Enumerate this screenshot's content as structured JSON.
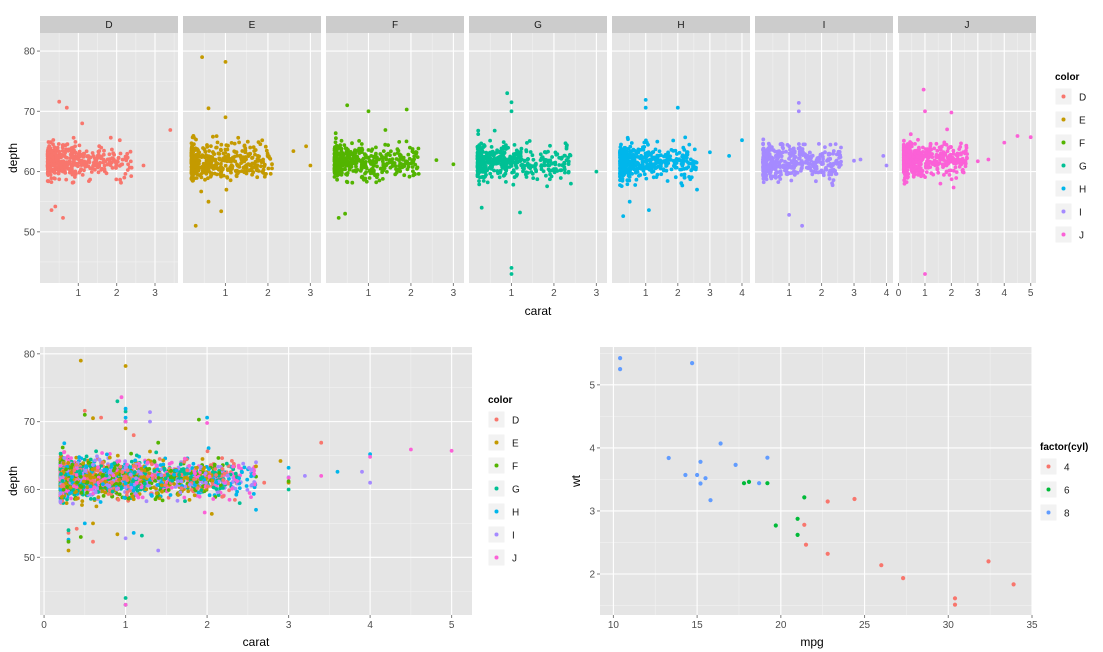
{
  "facet_plot": {
    "xlabel": "carat",
    "ylabel": "depth",
    "legend_title": "color",
    "ylim": [
      41.5,
      83
    ],
    "y_ticks": [
      "50",
      "60",
      "70",
      "80"
    ],
    "facets": [
      {
        "label": "D",
        "xlim": [
          0.0,
          3.6
        ],
        "x_ticks": [
          "1",
          "2",
          "3"
        ]
      },
      {
        "label": "E",
        "xlim": [
          0.0,
          3.25
        ],
        "x_ticks": [
          "1",
          "2",
          "3"
        ]
      },
      {
        "label": "F",
        "xlim": [
          0.0,
          3.25
        ],
        "x_ticks": [
          "1",
          "2",
          "3"
        ]
      },
      {
        "label": "G",
        "xlim": [
          0.0,
          3.25
        ],
        "x_ticks": [
          "1",
          "2",
          "3"
        ]
      },
      {
        "label": "H",
        "xlim": [
          -0.05,
          4.25
        ],
        "x_ticks": [
          "1",
          "2",
          "3",
          "4"
        ]
      },
      {
        "label": "I",
        "xlim": [
          -0.05,
          4.2
        ],
        "x_ticks": [
          "1",
          "2",
          "3",
          "4"
        ]
      },
      {
        "label": "J",
        "xlim": [
          -0.02,
          5.2
        ],
        "x_ticks": [
          "0",
          "1",
          "2",
          "3",
          "4",
          "5"
        ]
      }
    ],
    "legend": [
      "D",
      "E",
      "F",
      "G",
      "H",
      "I",
      "J"
    ]
  },
  "combined_plot": {
    "xlabel": "carat",
    "ylabel": "depth",
    "legend_title": "color",
    "xlim": [
      -0.05,
      5.25
    ],
    "ylim": [
      41.5,
      81
    ],
    "x_ticks": [
      "0",
      "1",
      "2",
      "3",
      "4",
      "5"
    ],
    "y_ticks": [
      "50",
      "60",
      "70",
      "80"
    ],
    "legend": [
      "D",
      "E",
      "F",
      "G",
      "H",
      "I",
      "J"
    ]
  },
  "mtcars_plot": {
    "xlabel": "mpg",
    "ylabel": "wt",
    "legend_title": "factor(cyl)",
    "xlim": [
      9.2,
      35.0
    ],
    "ylim": [
      1.35,
      5.6
    ],
    "x_ticks": [
      "10",
      "15",
      "20",
      "25",
      "30",
      "35"
    ],
    "y_ticks": [
      "2",
      "3",
      "4",
      "5"
    ],
    "legend": [
      "4",
      "6",
      "8"
    ]
  },
  "colors": {
    "D": "#F8766D",
    "E": "#C49A00",
    "F": "#53B400",
    "G": "#00C094",
    "H": "#00B6EB",
    "I": "#A58AFF",
    "J": "#FB61D7",
    "cyl4": "#F8766D",
    "cyl6": "#00BA38",
    "cyl8": "#619CFF",
    "panel_bg": "#E5E5E5",
    "grid_major": "#FFFFFF",
    "grid_minor": "#F2F2F2",
    "strip_bg": "#CCCCCC"
  },
  "chart_data": [
    {
      "type": "scatter",
      "title": "",
      "facet_by": "color",
      "xlabel": "carat",
      "ylabel": "depth",
      "ylim": [
        41.5,
        83
      ],
      "series": [
        {
          "name": "D",
          "cluster": {
            "x_range": [
              0.2,
              2.4
            ],
            "y_center": 61.7,
            "y_spread": 2.5
          },
          "points": [
            [
              0.5,
              71.6
            ],
            [
              0.7,
              70.6
            ],
            [
              0.4,
              54.2
            ],
            [
              0.3,
              53.6
            ],
            [
              0.6,
              52.3
            ],
            [
              2.7,
              61.0
            ],
            [
              3.4,
              66.9
            ],
            [
              2.1,
              63.0
            ],
            [
              1.1,
              68.0
            ],
            [
              2.2,
              59.0
            ]
          ]
        },
        {
          "name": "E",
          "cluster": {
            "x_range": [
              0.2,
              2.1
            ],
            "y_center": 61.6,
            "y_spread": 2.6
          },
          "points": [
            [
              0.45,
              79.0
            ],
            [
              1.0,
              78.2
            ],
            [
              0.6,
              70.5
            ],
            [
              1.0,
              69.0
            ],
            [
              0.3,
              51.0
            ],
            [
              0.9,
              53.4
            ],
            [
              0.6,
              55.0
            ],
            [
              2.6,
              63.4
            ],
            [
              3.0,
              61.0
            ],
            [
              2.9,
              64.2
            ],
            [
              1.3,
              65.6
            ]
          ]
        },
        {
          "name": "F",
          "cluster": {
            "x_range": [
              0.2,
              2.2
            ],
            "y_center": 61.6,
            "y_spread": 2.6
          },
          "points": [
            [
              0.5,
              71.0
            ],
            [
              1.0,
              70.0
            ],
            [
              0.3,
              52.3
            ],
            [
              0.45,
              53.0
            ],
            [
              1.9,
              70.3
            ],
            [
              2.6,
              61.9
            ],
            [
              3.0,
              61.2
            ],
            [
              1.4,
              66.9
            ]
          ]
        },
        {
          "name": "G",
          "cluster": {
            "x_range": [
              0.2,
              2.4
            ],
            "y_center": 61.6,
            "y_spread": 2.6
          },
          "points": [
            [
              0.9,
              73.0
            ],
            [
              1.0,
              70.0
            ],
            [
              1.0,
              44.0
            ],
            [
              1.0,
              43.0
            ],
            [
              1.2,
              53.2
            ],
            [
              2.4,
              58.0
            ],
            [
              3.0,
              60.0
            ],
            [
              1.0,
              71.5
            ],
            [
              0.3,
              54.0
            ]
          ]
        },
        {
          "name": "H",
          "cluster": {
            "x_range": [
              0.2,
              2.6
            ],
            "y_center": 61.6,
            "y_spread": 2.6
          },
          "points": [
            [
              1.0,
              71.9
            ],
            [
              1.0,
              70.6
            ],
            [
              0.3,
              52.6
            ],
            [
              0.5,
              55.0
            ],
            [
              3.0,
              63.2
            ],
            [
              3.6,
              62.6
            ],
            [
              4.0,
              65.2
            ],
            [
              2.6,
              57.0
            ],
            [
              2.0,
              70.6
            ],
            [
              1.1,
              53.6
            ]
          ]
        },
        {
          "name": "I",
          "cluster": {
            "x_range": [
              0.2,
              2.6
            ],
            "y_center": 61.6,
            "y_spread": 2.6
          },
          "points": [
            [
              1.3,
              71.4
            ],
            [
              1.3,
              70.0
            ],
            [
              1.0,
              52.8
            ],
            [
              1.4,
              51.0
            ],
            [
              2.6,
              64.0
            ],
            [
              3.2,
              62.0
            ],
            [
              3.9,
              62.6
            ],
            [
              4.0,
              61.0
            ],
            [
              3.0,
              61.8
            ]
          ]
        },
        {
          "name": "J",
          "cluster": {
            "x_range": [
              0.2,
              2.6
            ],
            "y_center": 61.8,
            "y_spread": 2.6
          },
          "points": [
            [
              0.95,
              73.6
            ],
            [
              1.0,
              43.0
            ],
            [
              4.5,
              65.9
            ],
            [
              5.0,
              65.7
            ],
            [
              3.0,
              61.7
            ],
            [
              3.4,
              62.0
            ],
            [
              4.0,
              64.8
            ],
            [
              2.0,
              69.8
            ],
            [
              1.0,
              70.0
            ]
          ]
        }
      ]
    },
    {
      "type": "scatter",
      "title": "",
      "xlabel": "carat",
      "ylabel": "depth",
      "xlim": [
        -0.05,
        5.25
      ],
      "ylim": [
        41.5,
        81
      ],
      "note_series": "same diamonds data as the faceted plot, all colors overlaid in one panel"
    },
    {
      "type": "scatter",
      "title": "",
      "xlabel": "mpg",
      "ylabel": "wt",
      "xlim": [
        9.2,
        35.0
      ],
      "ylim": [
        1.35,
        5.6
      ],
      "series": [
        {
          "name": "4",
          "points": [
            [
              22.8,
              2.32
            ],
            [
              24.4,
              3.19
            ],
            [
              22.8,
              3.15
            ],
            [
              32.4,
              2.2
            ],
            [
              30.4,
              1.615
            ],
            [
              33.9,
              1.835
            ],
            [
              21.5,
              2.465
            ],
            [
              27.3,
              1.935
            ],
            [
              26.0,
              2.14
            ],
            [
              30.4,
              1.513
            ],
            [
              21.4,
              2.78
            ]
          ]
        },
        {
          "name": "6",
          "points": [
            [
              21.0,
              2.62
            ],
            [
              21.0,
              2.875
            ],
            [
              21.4,
              3.215
            ],
            [
              18.1,
              3.46
            ],
            [
              19.2,
              3.44
            ],
            [
              17.8,
              3.44
            ],
            [
              19.7,
              2.77
            ]
          ]
        },
        {
          "name": "8",
          "points": [
            [
              18.7,
              3.44
            ],
            [
              14.3,
              3.57
            ],
            [
              16.4,
              4.07
            ],
            [
              17.3,
              3.73
            ],
            [
              15.2,
              3.78
            ],
            [
              10.4,
              5.25
            ],
            [
              10.4,
              5.424
            ],
            [
              14.7,
              5.345
            ],
            [
              15.5,
              3.52
            ],
            [
              15.2,
              3.435
            ],
            [
              13.3,
              3.84
            ],
            [
              19.2,
              3.845
            ],
            [
              15.8,
              3.17
            ],
            [
              15.0,
              3.57
            ]
          ]
        }
      ]
    }
  ]
}
